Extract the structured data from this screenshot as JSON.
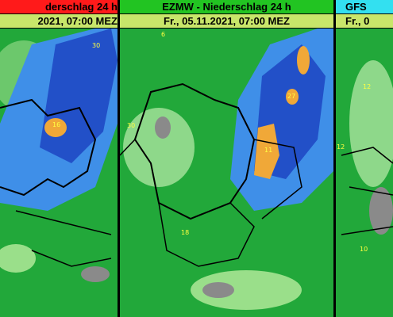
{
  "panels": [
    {
      "title": "derschlag 24 h",
      "date": "2021, 07:00 MEZ",
      "labels": [
        "30",
        "16"
      ]
    },
    {
      "title": "EZMW - Niederschlag 24 h",
      "date": "Fr., 05.11.2021, 07:00 MEZ",
      "labels": [
        "6",
        "30",
        "18",
        "27",
        "11"
      ]
    },
    {
      "title": "GFS",
      "date": "Fr., 0",
      "labels": [
        "12",
        "12",
        "10"
      ]
    }
  ]
}
